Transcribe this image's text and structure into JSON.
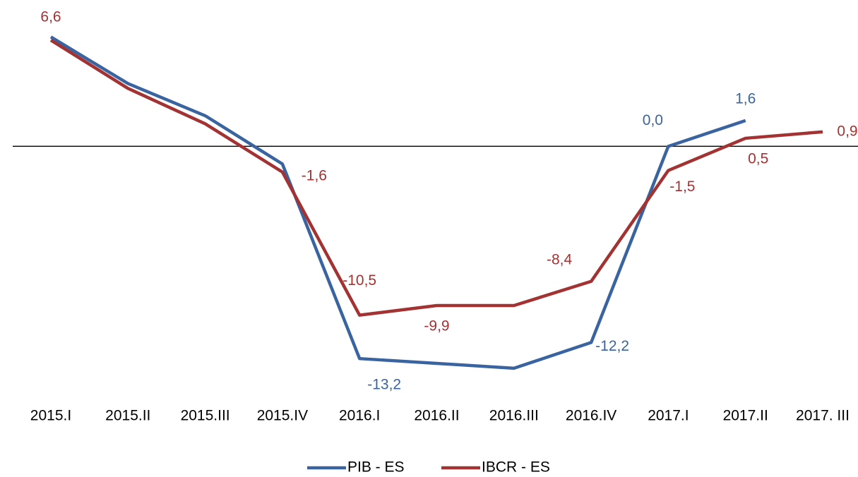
{
  "chart_data": {
    "type": "line",
    "categories": [
      "2015.I",
      "2015.II",
      "2015.III",
      "2015.IV",
      "2016.I",
      "2016.II",
      "2016.III",
      "2016.IV",
      "2017.I",
      "2017.II",
      "2017. III"
    ],
    "series": [
      {
        "name": "PIB - ES",
        "color": "#3a64a0",
        "values": [
          6.8,
          3.9,
          1.9,
          -1.1,
          -13.2,
          -13.5,
          -13.8,
          -12.2,
          0.0,
          1.6,
          null
        ],
        "value_labels": [
          null,
          null,
          null,
          null,
          "-13,2",
          null,
          null,
          "-12,2",
          "0,0",
          "1,6",
          null
        ]
      },
      {
        "name": "IBCR - ES",
        "color": "#a33232",
        "values": [
          6.6,
          3.6,
          1.4,
          -1.6,
          -10.5,
          -9.9,
          -9.9,
          -8.4,
          -1.5,
          0.5,
          0.9
        ],
        "value_labels": [
          "6,6",
          null,
          null,
          "-1,6",
          "-10,5",
          "-9,9",
          null,
          "-8,4",
          "-1,5",
          "0,5",
          "0,9"
        ]
      }
    ],
    "ylim": [
      -16,
      8
    ]
  }
}
